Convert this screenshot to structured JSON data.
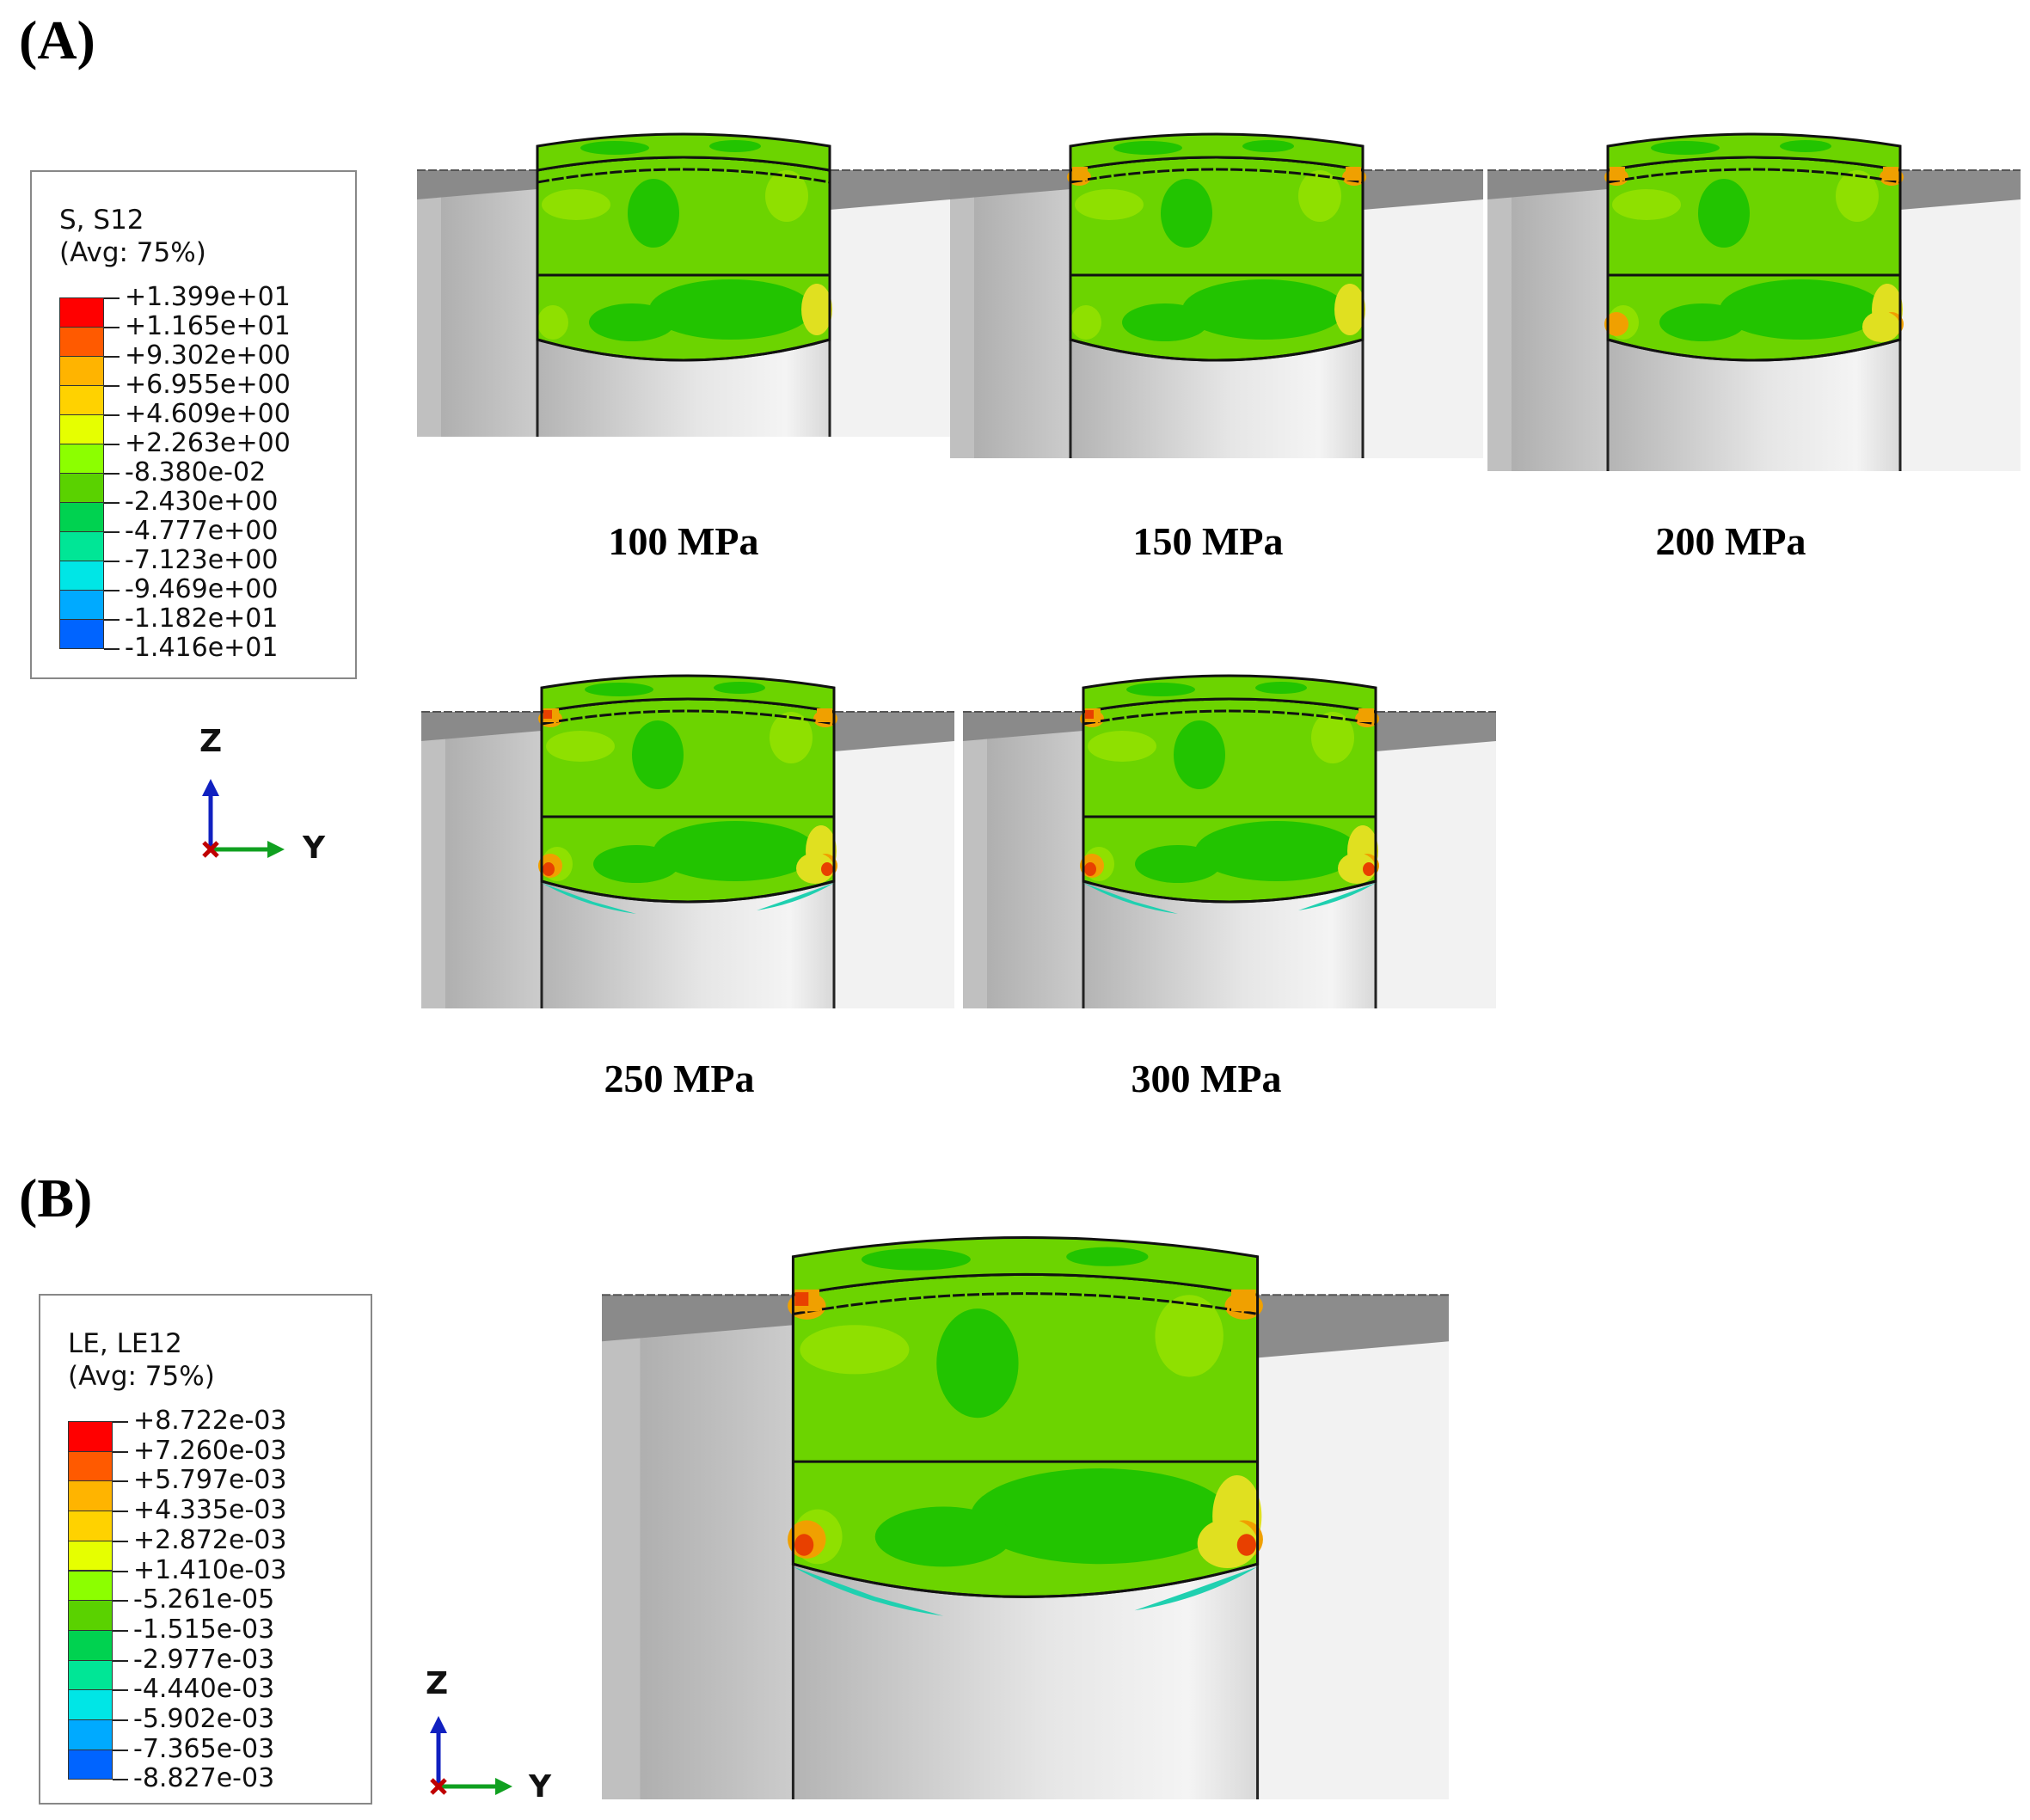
{
  "panel_a": {
    "tag": "(A)",
    "legend": {
      "title_line1": "S, S12",
      "title_line2": "(Avg: 75%)",
      "values": [
        "+1.399e+01",
        "+1.165e+01",
        "+9.302e+00",
        "+6.955e+00",
        "+4.609e+00",
        "+2.263e+00",
        "-8.380e-02",
        "-2.430e+00",
        "-4.777e+00",
        "-7.123e+00",
        "-9.469e+00",
        "-1.182e+01",
        "-1.416e+01"
      ]
    },
    "triad": {
      "z": "Z",
      "y": "Y"
    },
    "views": [
      {
        "caption": "100 MPa",
        "hot_level": 0
      },
      {
        "caption": "150 MPa",
        "hot_level": 1
      },
      {
        "caption": "200 MPa",
        "hot_level": 2
      },
      {
        "caption": "250 MPa",
        "hot_level": 3
      },
      {
        "caption": "300 MPa",
        "hot_level": 3
      }
    ]
  },
  "panel_b": {
    "tag": "(B)",
    "legend": {
      "title_line1": "LE, LE12",
      "title_line2": "(Avg: 75%)",
      "values": [
        "+8.722e-03",
        "+7.260e-03",
        "+5.797e-03",
        "+4.335e-03",
        "+2.872e-03",
        "+1.410e-03",
        "-5.261e-05",
        "-1.515e-03",
        "-2.977e-03",
        "-4.440e-03",
        "-5.902e-03",
        "-7.365e-03",
        "-8.827e-03"
      ]
    },
    "triad": {
      "z": "Z",
      "y": "Y"
    },
    "view": {
      "hot_level": 3
    }
  },
  "contour_colors": [
    "#ff0000",
    "#ff5a00",
    "#ffb400",
    "#ffd200",
    "#e6ff00",
    "#8cff00",
    "#5ad200",
    "#00d250",
    "#00e696",
    "#00e6e6",
    "#00aaff",
    "#0064ff",
    "#0000ff"
  ],
  "colors": {
    "base_green": "#6cd400",
    "mid_green": "#22c400",
    "light_green": "#8fe000",
    "yellow": "#e0e020",
    "orange": "#f0a000",
    "red": "#e84000",
    "cyan": "#20d0b0",
    "plate_dark": "#8c8c8c",
    "plate_light": "#d8d8d8",
    "pin": "#e0e0e0"
  }
}
